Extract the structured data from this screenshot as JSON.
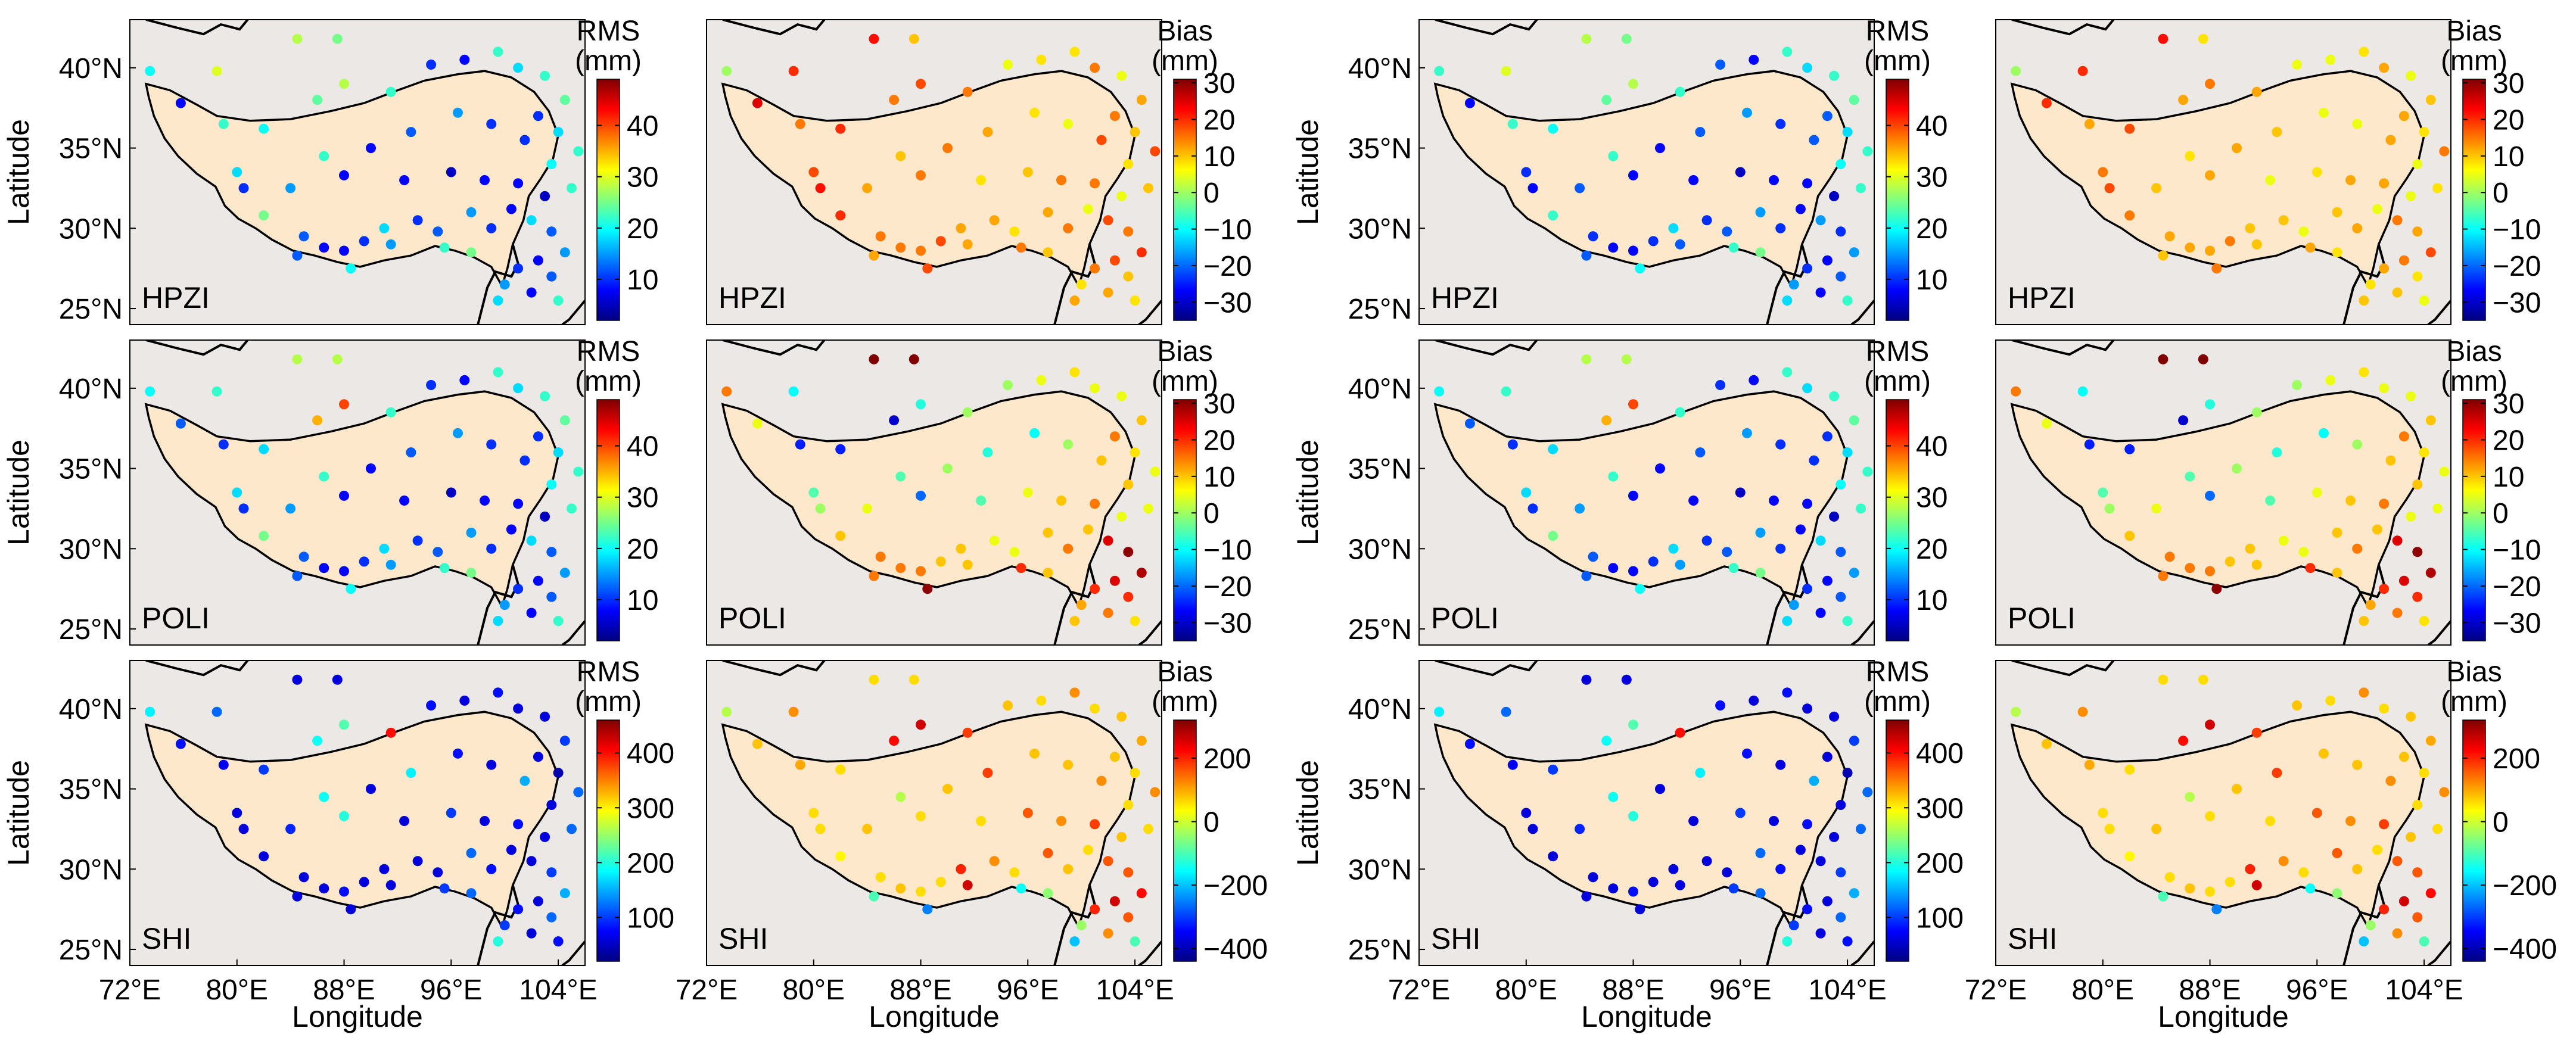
{
  "chart_data": {
    "type": "scatter",
    "map_extent": {
      "lon": [
        72,
        106
      ],
      "lat": [
        24,
        43
      ]
    },
    "xlabel": "Longitude",
    "ylabel": "Latitude",
    "x_ticks": [
      "72°E",
      "80°E",
      "88°E",
      "96°E",
      "104°E"
    ],
    "x_tick_values": [
      72,
      80,
      88,
      96,
      104
    ],
    "y_ticks": [
      "25°N",
      "30°N",
      "35°N",
      "40°N"
    ],
    "y_tick_values": [
      25,
      30,
      35,
      40
    ],
    "colormap": "jet",
    "colors": {
      "background": "#ece8e6",
      "plateau": "#fde8cc",
      "jet": [
        "#00007f",
        "#0000ff",
        "#0080ff",
        "#00ffff",
        "#80ff80",
        "#ffff00",
        "#ff8000",
        "#ff0000",
        "#7f0000"
      ]
    },
    "colorbars": {
      "rms_small": {
        "label_top": "RMS",
        "label_unit": "(mm)",
        "range": [
          2,
          49
        ],
        "ticks": [
          "10",
          "20",
          "30",
          "40"
        ],
        "tick_values": [
          10,
          20,
          30,
          40
        ]
      },
      "bias_small": {
        "label_top": "Bias",
        "label_unit": "(mm)",
        "range": [
          -35,
          31
        ],
        "ticks": [
          "30",
          "20",
          "10",
          "0",
          "−10",
          "−20",
          "−30"
        ],
        "tick_values": [
          30,
          20,
          10,
          0,
          -10,
          -20,
          -30
        ]
      },
      "rms_shi": {
        "label_top": "RMS",
        "label_unit": "(mm)",
        "range": [
          20,
          460
        ],
        "ticks": [
          "100",
          "200",
          "300",
          "400"
        ],
        "tick_values": [
          100,
          200,
          300,
          400
        ]
      },
      "bias_shi": {
        "label_top": "Bias",
        "label_unit": "(mm)",
        "range": [
          -440,
          320
        ],
        "ticks": [
          "200",
          "0",
          "−200",
          "−400"
        ],
        "tick_values": [
          200,
          0,
          -200,
          -400
        ]
      }
    },
    "stations": [
      {
        "lon": 73.5,
        "lat": 39.8
      },
      {
        "lon": 78.5,
        "lat": 39.8
      },
      {
        "lon": 84.5,
        "lat": 41.8
      },
      {
        "lon": 87.5,
        "lat": 41.8
      },
      {
        "lon": 75.8,
        "lat": 37.8
      },
      {
        "lon": 79.0,
        "lat": 36.5
      },
      {
        "lon": 82.0,
        "lat": 36.2
      },
      {
        "lon": 86.0,
        "lat": 38.0
      },
      {
        "lon": 88.0,
        "lat": 39.0
      },
      {
        "lon": 91.5,
        "lat": 38.5
      },
      {
        "lon": 94.5,
        "lat": 40.2
      },
      {
        "lon": 97.0,
        "lat": 40.5
      },
      {
        "lon": 99.5,
        "lat": 41.0
      },
      {
        "lon": 101.0,
        "lat": 40.0
      },
      {
        "lon": 103.0,
        "lat": 39.5
      },
      {
        "lon": 104.5,
        "lat": 38.0
      },
      {
        "lon": 102.5,
        "lat": 37.0
      },
      {
        "lon": 104.0,
        "lat": 36.0
      },
      {
        "lon": 105.5,
        "lat": 34.8
      },
      {
        "lon": 103.5,
        "lat": 34.0
      },
      {
        "lon": 101.5,
        "lat": 35.5
      },
      {
        "lon": 99.0,
        "lat": 36.5
      },
      {
        "lon": 96.5,
        "lat": 37.2
      },
      {
        "lon": 93.0,
        "lat": 36.0
      },
      {
        "lon": 90.0,
        "lat": 35.0
      },
      {
        "lon": 86.5,
        "lat": 34.5
      },
      {
        "lon": 80.0,
        "lat": 33.5
      },
      {
        "lon": 80.5,
        "lat": 32.5
      },
      {
        "lon": 84.0,
        "lat": 32.5
      },
      {
        "lon": 88.0,
        "lat": 33.3
      },
      {
        "lon": 92.5,
        "lat": 33.0
      },
      {
        "lon": 96.0,
        "lat": 33.5
      },
      {
        "lon": 98.5,
        "lat": 33.0
      },
      {
        "lon": 101.0,
        "lat": 32.8
      },
      {
        "lon": 103.0,
        "lat": 32.0
      },
      {
        "lon": 105.0,
        "lat": 32.5
      },
      {
        "lon": 82.0,
        "lat": 30.8
      },
      {
        "lon": 85.0,
        "lat": 29.5
      },
      {
        "lon": 86.5,
        "lat": 28.8
      },
      {
        "lon": 88.0,
        "lat": 28.6
      },
      {
        "lon": 89.5,
        "lat": 29.2
      },
      {
        "lon": 91.0,
        "lat": 30.0
      },
      {
        "lon": 91.5,
        "lat": 29.0
      },
      {
        "lon": 93.5,
        "lat": 30.5
      },
      {
        "lon": 95.0,
        "lat": 29.8
      },
      {
        "lon": 97.5,
        "lat": 31.0
      },
      {
        "lon": 99.0,
        "lat": 30.0
      },
      {
        "lon": 100.5,
        "lat": 31.2
      },
      {
        "lon": 102.0,
        "lat": 30.5
      },
      {
        "lon": 103.5,
        "lat": 29.8
      },
      {
        "lon": 104.5,
        "lat": 28.5
      },
      {
        "lon": 102.5,
        "lat": 28.0
      },
      {
        "lon": 101.0,
        "lat": 27.5
      },
      {
        "lon": 103.5,
        "lat": 27.0
      },
      {
        "lon": 102.0,
        "lat": 26.0
      },
      {
        "lon": 100.0,
        "lat": 26.5
      },
      {
        "lon": 99.5,
        "lat": 25.5
      },
      {
        "lon": 104.0,
        "lat": 25.5
      },
      {
        "lon": 97.5,
        "lat": 28.5
      },
      {
        "lon": 95.5,
        "lat": 28.8
      },
      {
        "lon": 88.5,
        "lat": 27.5
      },
      {
        "lon": 84.5,
        "lat": 28.3
      }
    ],
    "panels": [
      {
        "row": 0,
        "col": 0,
        "label": "HPZI",
        "metric": "rms",
        "colorbar": "rms_small",
        "values": [
          20,
          30,
          28,
          25,
          8,
          22,
          20,
          24,
          28,
          22,
          10,
          8,
          22,
          18,
          22,
          24,
          10,
          18,
          22,
          20,
          10,
          10,
          15,
          12,
          8,
          22,
          18,
          10,
          15,
          8,
          8,
          5,
          8,
          8,
          5,
          22,
          25,
          12,
          8,
          8,
          10,
          18,
          15,
          10,
          12,
          15,
          10,
          8,
          18,
          12,
          15,
          8,
          10,
          12,
          8,
          15,
          18,
          22,
          25,
          22,
          20,
          12
        ]
      },
      {
        "row": 0,
        "col": 1,
        "label": "HPZI",
        "metric": "bias",
        "colorbar": "bias_small",
        "values": [
          0,
          20,
          22,
          10,
          25,
          15,
          20,
          15,
          18,
          15,
          5,
          8,
          8,
          15,
          5,
          12,
          15,
          10,
          18,
          8,
          18,
          5,
          8,
          12,
          15,
          10,
          18,
          22,
          12,
          15,
          8,
          10,
          15,
          15,
          5,
          10,
          20,
          15,
          15,
          15,
          18,
          12,
          12,
          12,
          8,
          12,
          15,
          5,
          18,
          15,
          20,
          18,
          15,
          10,
          12,
          8,
          12,
          8,
          10,
          15,
          18,
          12
        ]
      },
      {
        "row": 0,
        "col": 2,
        "label": "HPZI",
        "metric": "rms",
        "colorbar": "rms_small",
        "values": [
          22,
          30,
          28,
          25,
          8,
          22,
          20,
          24,
          28,
          22,
          12,
          8,
          22,
          18,
          22,
          24,
          12,
          18,
          22,
          20,
          12,
          10,
          15,
          12,
          8,
          22,
          10,
          8,
          12,
          8,
          8,
          5,
          8,
          8,
          5,
          22,
          22,
          10,
          8,
          8,
          10,
          18,
          12,
          10,
          12,
          15,
          10,
          8,
          15,
          10,
          15,
          8,
          10,
          12,
          8,
          15,
          18,
          22,
          25,
          22,
          20,
          12
        ]
      },
      {
        "row": 0,
        "col": 3,
        "label": "HPZI",
        "metric": "bias",
        "colorbar": "bias_small",
        "values": [
          0,
          20,
          22,
          8,
          20,
          12,
          18,
          12,
          15,
          12,
          5,
          5,
          8,
          12,
          5,
          10,
          12,
          8,
          15,
          5,
          12,
          5,
          5,
          10,
          12,
          8,
          15,
          18,
          10,
          12,
          5,
          8,
          12,
          12,
          5,
          8,
          15,
          12,
          12,
          12,
          15,
          10,
          10,
          10,
          5,
          10,
          12,
          5,
          15,
          12,
          18,
          15,
          12,
          8,
          10,
          8,
          10,
          5,
          8,
          12,
          15,
          10
        ]
      },
      {
        "row": 1,
        "col": 0,
        "label": "POLI",
        "metric": "rms",
        "colorbar": "rms_small",
        "values": [
          20,
          22,
          28,
          28,
          12,
          10,
          18,
          35,
          40,
          22,
          10,
          8,
          22,
          18,
          22,
          24,
          10,
          18,
          22,
          20,
          10,
          10,
          15,
          12,
          8,
          22,
          18,
          10,
          15,
          8,
          8,
          5,
          8,
          8,
          5,
          22,
          25,
          12,
          8,
          8,
          10,
          18,
          15,
          10,
          12,
          15,
          10,
          8,
          18,
          12,
          15,
          8,
          10,
          12,
          8,
          15,
          18,
          22,
          25,
          22,
          20,
          12
        ]
      },
      {
        "row": 1,
        "col": 1,
        "label": "POLI",
        "metric": "bias",
        "colorbar": "bias_small",
        "values": [
          15,
          -10,
          32,
          32,
          5,
          -25,
          -25,
          -30,
          -8,
          0,
          0,
          5,
          8,
          5,
          5,
          10,
          15,
          8,
          5,
          10,
          10,
          0,
          -10,
          -8,
          0,
          -5,
          -5,
          0,
          5,
          -20,
          -5,
          5,
          10,
          15,
          5,
          5,
          10,
          15,
          15,
          15,
          10,
          10,
          10,
          5,
          5,
          10,
          15,
          10,
          25,
          30,
          28,
          25,
          20,
          20,
          15,
          12,
          10,
          8,
          10,
          20,
          30,
          15
        ]
      },
      {
        "row": 1,
        "col": 2,
        "label": "POLI",
        "metric": "rms",
        "colorbar": "rms_small",
        "values": [
          20,
          22,
          28,
          28,
          12,
          10,
          18,
          35,
          40,
          22,
          10,
          8,
          22,
          18,
          22,
          24,
          10,
          18,
          22,
          20,
          10,
          10,
          15,
          12,
          8,
          22,
          18,
          10,
          15,
          8,
          8,
          5,
          8,
          8,
          5,
          22,
          25,
          12,
          8,
          8,
          10,
          18,
          15,
          10,
          12,
          15,
          10,
          8,
          18,
          12,
          15,
          8,
          10,
          12,
          8,
          15,
          18,
          22,
          25,
          22,
          20,
          12
        ]
      },
      {
        "row": 1,
        "col": 3,
        "label": "POLI",
        "metric": "bias",
        "colorbar": "bias_small",
        "values": [
          15,
          -10,
          32,
          32,
          5,
          -25,
          -25,
          -30,
          -8,
          0,
          0,
          5,
          8,
          5,
          5,
          10,
          15,
          8,
          5,
          10,
          10,
          0,
          -10,
          -8,
          0,
          -5,
          -5,
          0,
          5,
          -20,
          -5,
          5,
          10,
          15,
          5,
          5,
          10,
          15,
          15,
          15,
          10,
          10,
          10,
          5,
          5,
          10,
          15,
          10,
          25,
          30,
          28,
          25,
          20,
          20,
          15,
          12,
          10,
          8,
          10,
          20,
          30,
          15
        ]
      },
      {
        "row": 2,
        "col": 0,
        "label": "SHI",
        "metric": "rms",
        "colorbar": "rms_shi",
        "values": [
          180,
          120,
          60,
          60,
          80,
          70,
          100,
          190,
          220,
          400,
          80,
          60,
          80,
          60,
          60,
          100,
          60,
          40,
          120,
          60,
          150,
          60,
          80,
          180,
          60,
          190,
          60,
          60,
          90,
          200,
          60,
          100,
          60,
          80,
          60,
          120,
          60,
          60,
          60,
          80,
          60,
          60,
          60,
          60,
          60,
          120,
          80,
          60,
          60,
          100,
          150,
          60,
          80,
          120,
          60,
          100,
          200,
          80,
          120,
          100,
          60,
          60
        ]
      },
      {
        "row": 2,
        "col": 1,
        "label": "SHI",
        "metric": "bias",
        "colorbar": "bias_shi",
        "values": [
          -20,
          120,
          60,
          60,
          80,
          100,
          60,
          220,
          260,
          180,
          80,
          60,
          120,
          60,
          80,
          100,
          80,
          60,
          120,
          60,
          120,
          80,
          80,
          180,
          80,
          -20,
          60,
          60,
          80,
          60,
          60,
          160,
          120,
          180,
          80,
          60,
          40,
          60,
          80,
          60,
          60,
          200,
          260,
          120,
          60,
          160,
          80,
          60,
          160,
          160,
          220,
          260,
          200,
          160,
          120,
          -40,
          -200,
          -100,
          -50,
          -150,
          -250,
          -100
        ]
      },
      {
        "row": 2,
        "col": 2,
        "label": "SHI",
        "metric": "rms",
        "colorbar": "rms_shi",
        "values": [
          180,
          120,
          60,
          60,
          80,
          70,
          100,
          190,
          220,
          400,
          80,
          60,
          80,
          60,
          60,
          100,
          60,
          40,
          120,
          60,
          150,
          60,
          80,
          180,
          60,
          190,
          60,
          60,
          90,
          200,
          60,
          100,
          60,
          80,
          60,
          120,
          60,
          60,
          60,
          80,
          60,
          60,
          60,
          60,
          60,
          120,
          80,
          60,
          60,
          100,
          150,
          60,
          80,
          120,
          60,
          100,
          200,
          80,
          120,
          100,
          60,
          60
        ]
      },
      {
        "row": 2,
        "col": 3,
        "label": "SHI",
        "metric": "bias",
        "colorbar": "bias_shi",
        "values": [
          -20,
          120,
          60,
          60,
          80,
          100,
          60,
          220,
          260,
          180,
          80,
          60,
          120,
          60,
          80,
          100,
          80,
          60,
          120,
          60,
          120,
          80,
          80,
          180,
          80,
          -20,
          60,
          60,
          80,
          60,
          60,
          160,
          120,
          180,
          80,
          60,
          40,
          60,
          80,
          60,
          60,
          200,
          260,
          120,
          60,
          160,
          80,
          60,
          160,
          160,
          220,
          260,
          200,
          160,
          120,
          -40,
          -200,
          -100,
          -50,
          -150,
          -250,
          -100
        ]
      }
    ]
  }
}
